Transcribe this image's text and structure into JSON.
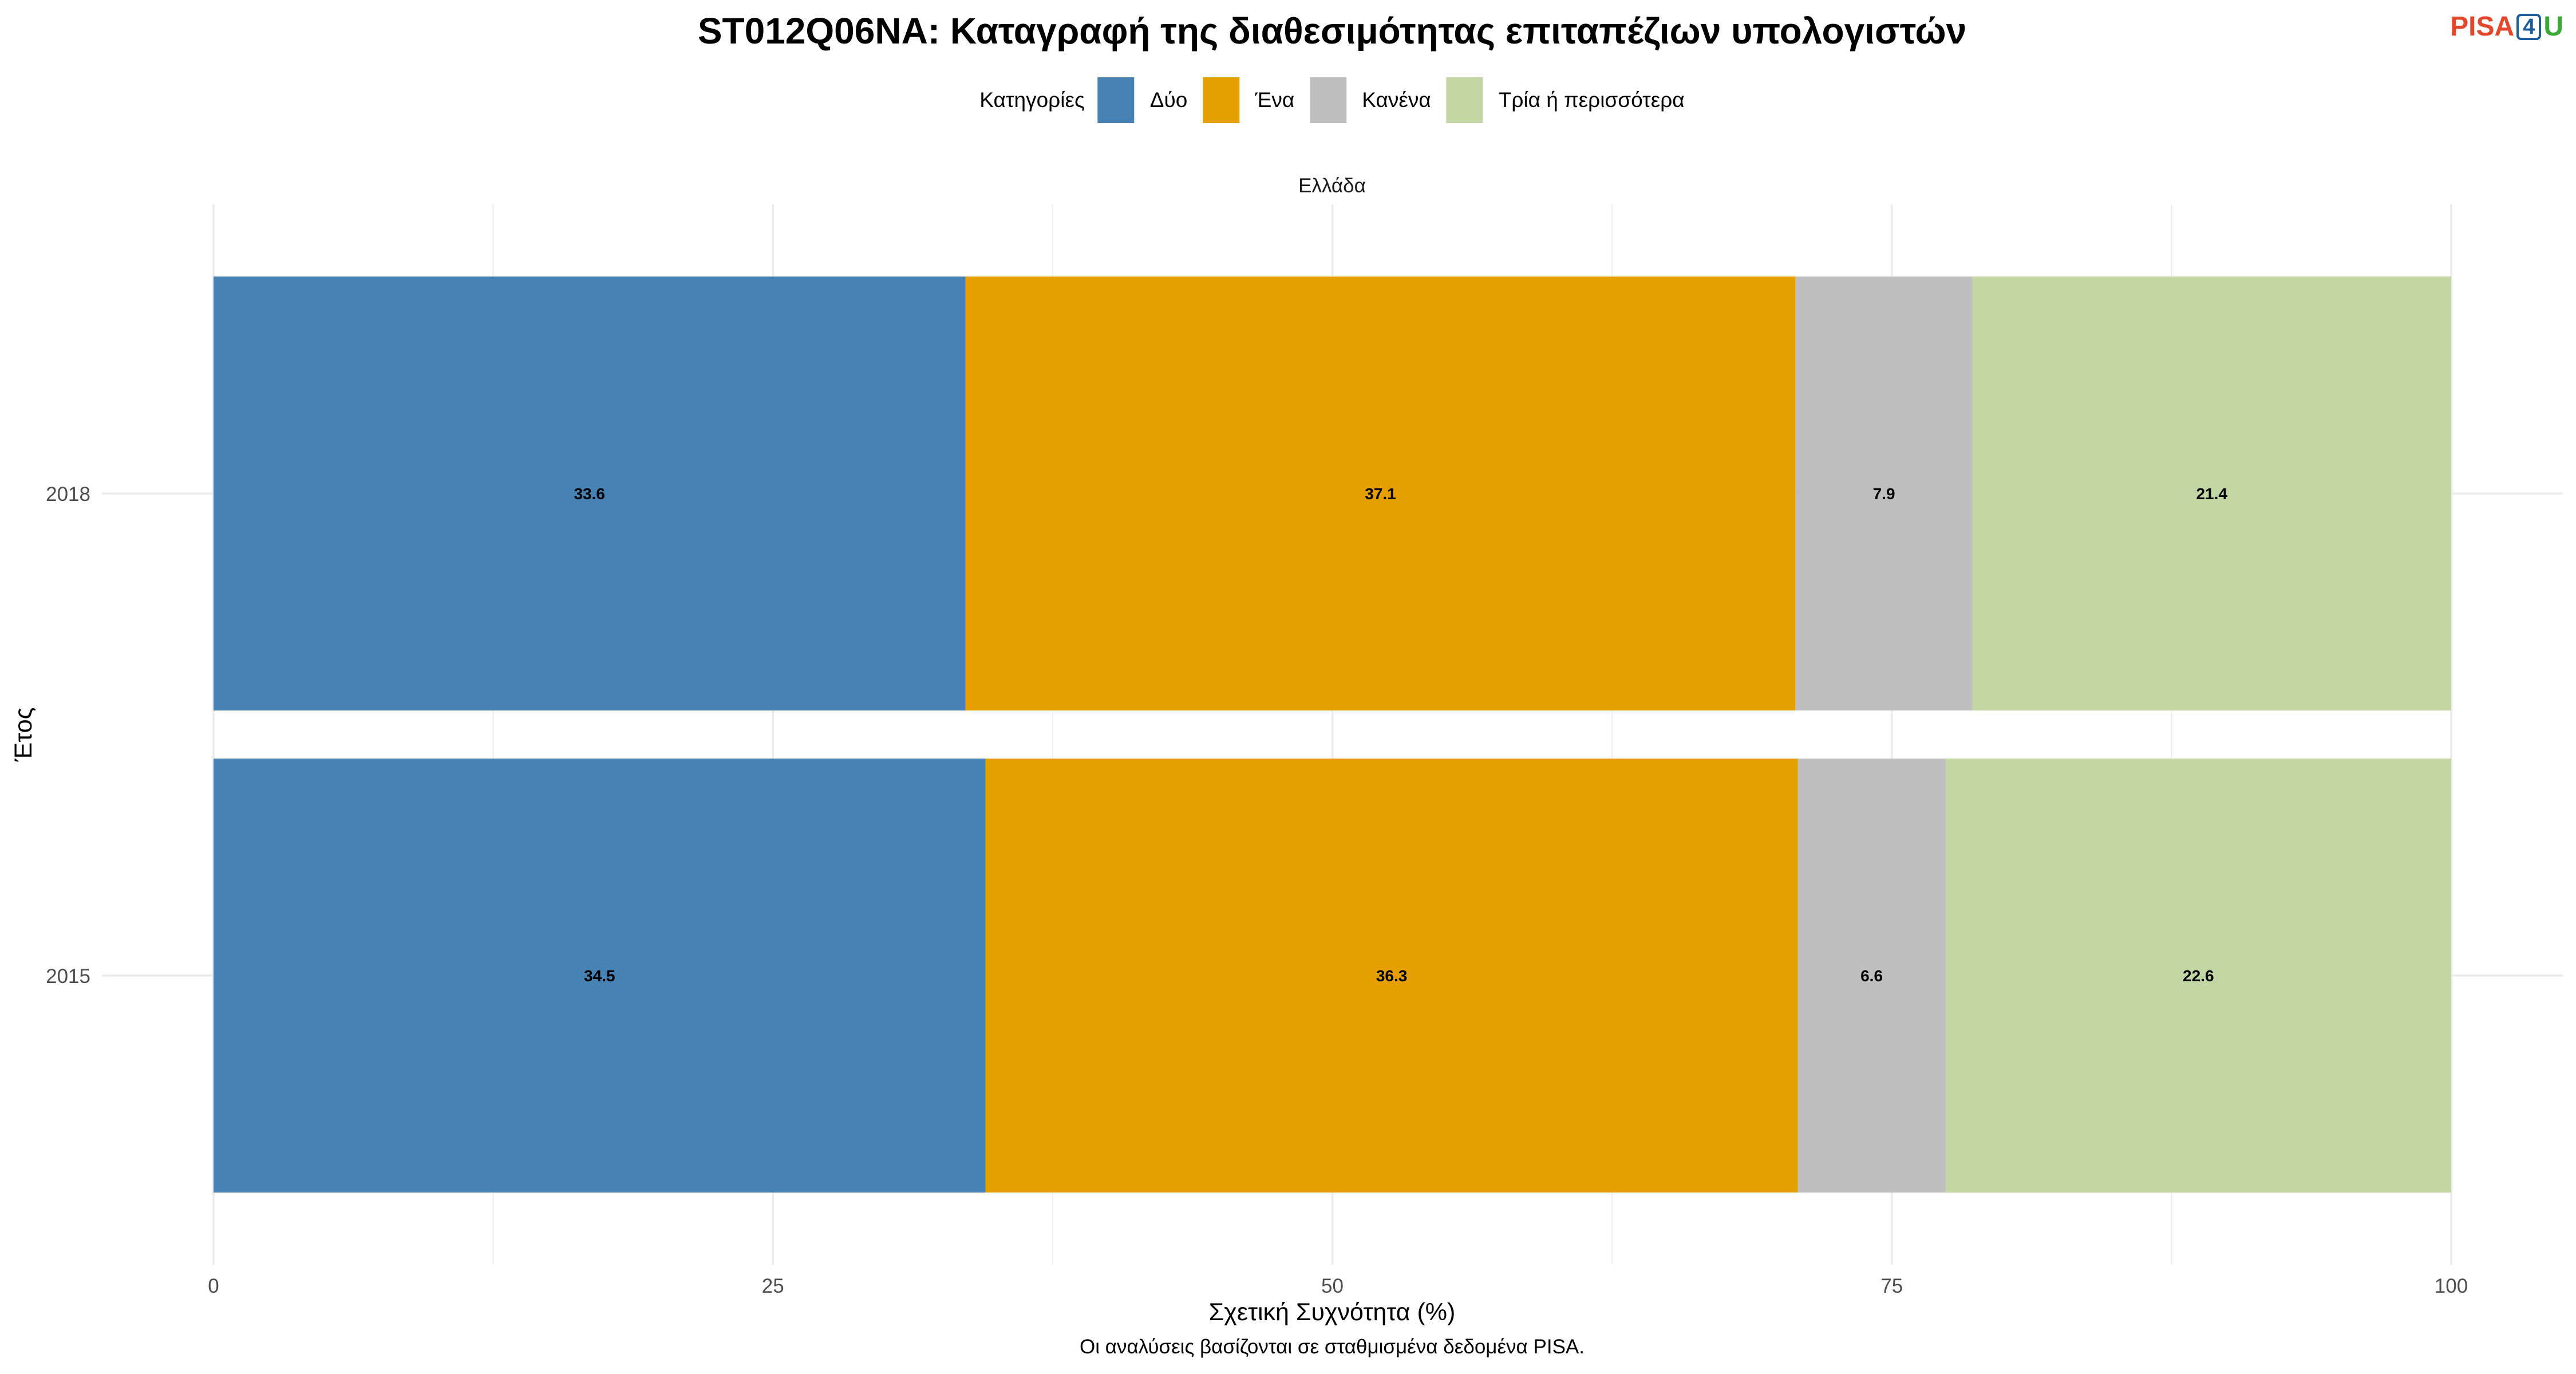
{
  "logo": {
    "part1": "PISA",
    "part2": "4",
    "part3": "U",
    "colors": {
      "part1": "#E5472D",
      "part2": "#1F5C9E",
      "part3": "#3AA935"
    }
  },
  "chart_data": {
    "type": "bar",
    "orientation": "horizontal",
    "stacked": true,
    "title": "ST012Q06NA: Καταγραφή της διαθεσιμότητας επιταπέζιων υπολογιστών",
    "facet": "Ελλάδα",
    "legend_title": "Κατηγορίες",
    "legend_position": "top",
    "categories": [
      "2018",
      "2015"
    ],
    "series": [
      {
        "name": "Δύο",
        "color": "#4682B4",
        "values": [
          33.6,
          34.5
        ]
      },
      {
        "name": "Ένα",
        "color": "#E69F00",
        "values": [
          37.1,
          36.3
        ]
      },
      {
        "name": "Κανένα",
        "color": "#BEBEBE",
        "values": [
          7.9,
          6.6
        ]
      },
      {
        "name": "Τρία ή περισσότερα",
        "color": "#C2D6A4",
        "values": [
          21.4,
          22.6
        ]
      }
    ],
    "xlabel": "Σχετική Συχνότητα (%)",
    "ylabel": "Έτος",
    "xlim": [
      0,
      100
    ],
    "xticks": [
      0,
      25,
      50,
      75,
      100
    ],
    "grid": true,
    "caption": "Οι αναλύσεις βασίζονται σε σταθμισμένα δεδομένα PISA."
  }
}
